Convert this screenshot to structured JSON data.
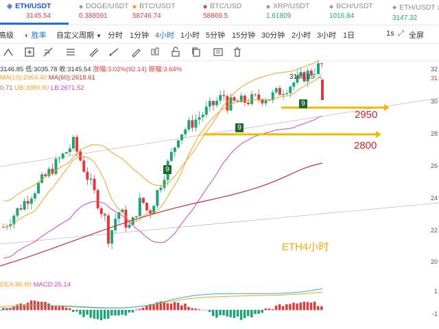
{
  "tickers": [
    {
      "symbol": "ETH/USDT",
      "price": "3145.54",
      "price_color": "#e03a3a",
      "active": true
    },
    {
      "symbol": "DOGE/USDT",
      "price": "0.388591",
      "price_color": "#e03a3a",
      "active": false
    },
    {
      "symbol": "BTC/USDT",
      "price": "58746.74",
      "price_color": "#e03a3a",
      "active": false
    },
    {
      "symbol": "BTC/USD",
      "price": "58869.5",
      "price_color": "#e03a3a",
      "active": false
    },
    {
      "symbol": "XRP/USDT",
      "price": "1.61809",
      "price_color": "#1fa37a",
      "active": false
    },
    {
      "symbol": "BCH/USDT",
      "price": "1016.84",
      "price_color": "#1fa37a",
      "active": false
    },
    {
      "symbol": "ETH/USDT 永",
      "price": "3147.32",
      "price_color": "#1fa37a",
      "active": false
    }
  ],
  "intervals": {
    "items": [
      "高级",
      "胜率",
      "自定义周期",
      "分时",
      "1分钟",
      "4小时",
      "1小时",
      "5分钟",
      "15分钟",
      "30分钟",
      "2小时",
      "3小时",
      "1日"
    ],
    "selected": "4小时",
    "right": [
      "1s",
      "全屏"
    ]
  },
  "toolbar": {
    "icons": [
      "grid-icon",
      "plus-box-icon",
      "ruler-icon",
      "crosshair-icon",
      "brush-icon",
      "line-icon",
      "candle-icon",
      "lock-icon",
      "copy-icon",
      "trash-icon"
    ]
  },
  "ohlc": {
    "line1": {
      "open": "3146.85",
      "low": "低:3035.78",
      "close": "收:3145.54",
      "change": "涨幅:3.02%(92.14)",
      "amplitude": "振幅:3.64%"
    },
    "line2": {
      "ma10": "MA(10):2964.40",
      "ma60": "MA(60):2618.61"
    },
    "line3": {
      "v": "0.71",
      "ub": "UB:3089.90",
      "lb": "LB:2671.52"
    }
  },
  "chart": {
    "last_price_label": "3146.85",
    "axis_labels": [
      "32",
      "31",
      "30",
      "28",
      "26",
      "24",
      "22",
      "20"
    ],
    "annotation": "ETH4小时",
    "levels": [
      "2950",
      "2800"
    ],
    "td_marks": [
      "9",
      "9",
      "9"
    ]
  },
  "macd": {
    "dea": "DEA:86.89",
    "macd": "MACD:25.14",
    "axis": [
      "1",
      "-1"
    ]
  },
  "colors": {
    "up": "#1fa37a",
    "down": "#e03a3a",
    "ma10": "#f0a020",
    "ma60": "#c43030",
    "boll": "#d040d0",
    "arrow": "#f5b800",
    "accent": "#1e6fe0"
  }
}
